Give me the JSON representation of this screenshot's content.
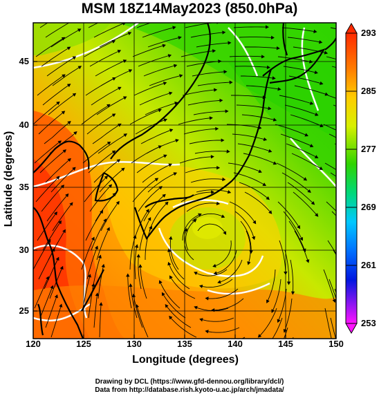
{
  "title": "MSM 18Z14May2023 (850.0hPa)",
  "xaxis": {
    "label": "Longitude (degrees)",
    "ticks": [
      "120",
      "125",
      "130",
      "135",
      "140",
      "145",
      "150"
    ]
  },
  "yaxis": {
    "label": "Latitude  (degrees)",
    "ticks": [
      "25",
      "30",
      "35",
      "40",
      "45"
    ]
  },
  "colorbar": {
    "ticks": [
      "293",
      "285",
      "277",
      "269",
      "261",
      "253"
    ]
  },
  "credits": {
    "line1": "Drawing by DCL (https://www.gfd-dennou.org/library/dcl/)",
    "line2": "Data from http://database.rish.kyoto-u.ac.jp/arch/jmadata/"
  },
  "chart_data": {
    "type": "heatmap",
    "title": "MSM 18Z14May2023 (850.0hPa)",
    "xlabel": "Longitude (degrees)",
    "ylabel": "Latitude  (degrees)",
    "xlim": [
      120,
      150
    ],
    "ylim": [
      22.4,
      47.6
    ],
    "colorbar": {
      "min": 253,
      "max": 293,
      "ticks": [
        293,
        285,
        277,
        269,
        261,
        253
      ]
    },
    "colors": {
      "c293": "#ff2a00",
      "c289": "#ff8a00",
      "c285": "#ffd500",
      "c281": "#b8f000",
      "c277": "#2fd400",
      "c273": "#00d86a",
      "c269": "#00c8ff",
      "c261": "#0016e0",
      "c253": "#ff14ff"
    }
  }
}
